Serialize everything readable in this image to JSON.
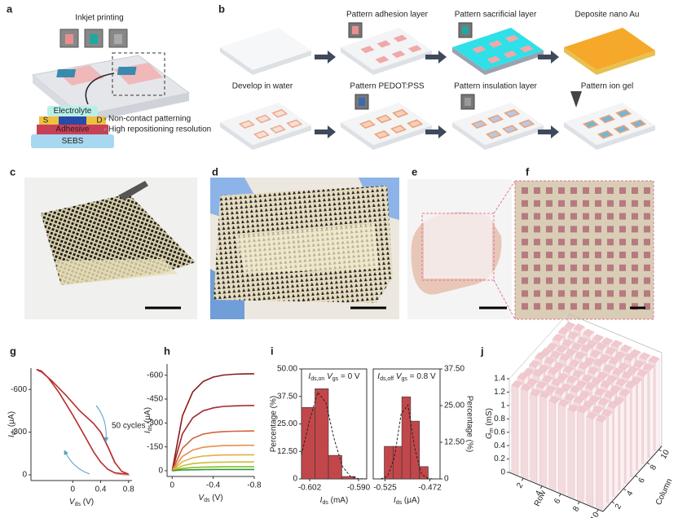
{
  "figure": {
    "panel_a": {
      "label": "a",
      "title": "Inkjet printing",
      "layers": [
        "Electrolyte",
        "S",
        "D",
        "Adhesive",
        "SEBS"
      ],
      "notes": [
        "Non-contact patterning",
        "High repositioning resolution"
      ]
    },
    "panel_b": {
      "label": "b",
      "steps": [
        "Pattern adhesion layer",
        "Pattern sacrificial layer",
        "Deposite nano Au",
        "Develop in water",
        "Pattern PEDOT:PSS",
        "Pattern insulation layer",
        "Pattern ion gel"
      ]
    },
    "photo_labels": [
      "c",
      "d",
      "e",
      "f"
    ]
  },
  "chart_data": [
    {
      "label": "g",
      "type": "line",
      "xlabel": [
        "V",
        "ds",
        " (V)"
      ],
      "ylabel": [
        "I",
        "ds",
        " (μA)"
      ],
      "annotation": "50 cycles",
      "xlim": [
        -0.6,
        0.85
      ],
      "xticks": [
        0,
        0.4,
        0.8
      ],
      "ylim": [
        40,
        -750
      ],
      "yticks": [
        0,
        -300,
        -600
      ],
      "series": [
        {
          "color": "#b8312f",
          "x": [
            -0.52,
            -0.45,
            -0.3,
            -0.1,
            0.1,
            0.3,
            0.4,
            0.5,
            0.6,
            0.7,
            0.8
          ],
          "values": [
            -740,
            -725,
            -660,
            -560,
            -450,
            -360,
            -300,
            -200,
            -90,
            -25,
            -5
          ]
        },
        {
          "color": "#b8312f",
          "x": [
            0.8,
            0.7,
            0.6,
            0.5,
            0.4,
            0.3,
            0.14,
            0.0,
            -0.2,
            -0.35,
            -0.45,
            -0.52
          ],
          "values": [
            -5,
            -8,
            -15,
            -40,
            -90,
            -160,
            -300,
            -420,
            -580,
            -680,
            -730,
            -740
          ]
        }
      ]
    },
    {
      "label": "h",
      "type": "line",
      "xlabel": [
        "V",
        "ds",
        " (V)"
      ],
      "ylabel": [
        "I",
        "ds",
        " (μA)"
      ],
      "xlim": [
        0.05,
        -0.8
      ],
      "xticks": [
        0,
        -0.4,
        -0.8
      ],
      "ylim": [
        36,
        -670
      ],
      "yticks": [
        0,
        -150,
        -300,
        -450,
        -600
      ],
      "x": [
        0,
        -0.1,
        -0.2,
        -0.3,
        -0.4,
        -0.5,
        -0.6,
        -0.7,
        -0.8
      ],
      "series": [
        {
          "color": "#8b1a1a",
          "values": [
            0,
            -345,
            -495,
            -560,
            -588,
            -601,
            -606,
            -608,
            -609
          ]
        },
        {
          "color": "#a3282a",
          "values": [
            0,
            -232,
            -333,
            -376,
            -395,
            -404,
            -407,
            -409,
            -410
          ]
        },
        {
          "color": "#d0643c",
          "values": [
            0,
            -141,
            -203,
            -230,
            -241,
            -246,
            -248,
            -249,
            -250
          ]
        },
        {
          "color": "#e8904a",
          "values": [
            0,
            -90,
            -130,
            -147,
            -154,
            -158,
            -159,
            -160,
            -160
          ]
        },
        {
          "color": "#e0b040",
          "values": [
            0,
            -57,
            -81,
            -92,
            -96,
            -99,
            -99,
            -100,
            -100
          ]
        },
        {
          "color": "#c8c030",
          "values": [
            0,
            -31,
            -45,
            -50,
            -53,
            -54,
            -55,
            -55,
            -55
          ]
        },
        {
          "color": "#88b830",
          "values": [
            0,
            -14,
            -20,
            -23,
            -24,
            -25,
            -25,
            -25,
            -25
          ]
        },
        {
          "color": "#2e9a2e",
          "values": [
            0,
            -5,
            -6,
            -7,
            -8,
            -8,
            -8,
            -8,
            -8
          ]
        }
      ]
    },
    {
      "label": "i",
      "type": "histogram",
      "annotation": [
        "I",
        "ds,on",
        " V",
        "gs",
        " = 0 V"
      ],
      "xlabel": [
        "I",
        "ds",
        " (mA)"
      ],
      "ylabel": "Percentage (%)",
      "y_axis_side": "left",
      "color": "#c2474b",
      "bins": [
        -0.604,
        -0.6007,
        -0.5974,
        -0.5941,
        -0.5908
      ],
      "values": [
        32.5,
        41,
        10.7,
        1.1
      ],
      "fit": {
        "x": [
          -0.604,
          -0.602,
          -0.6,
          -0.598,
          -0.596,
          -0.594,
          -0.592,
          -0.59,
          -0.588
        ],
        "values": [
          11,
          26.8,
          39.4,
          34.6,
          18.3,
          5.8,
          1.1,
          0.1,
          0
        ]
      },
      "xlim": [
        -0.604,
        -0.588
      ],
      "xticks": [
        -0.602,
        {
          "value": -0.59,
          "label": "-0.590"
        }
      ],
      "ylim": [
        0,
        50
      ],
      "yticks": [
        0,
        {
          "value": 12.5,
          "label": "12.50"
        },
        {
          "value": 25,
          "label": "25.00"
        },
        {
          "value": 37.5,
          "label": "37.50"
        },
        {
          "value": 50,
          "label": "50.00"
        }
      ]
    },
    {
      "type": "histogram",
      "annotation": [
        "I",
        "ds,off",
        " V",
        "gs",
        " = 0.8 V"
      ],
      "xlabel": [
        "I",
        "ds",
        " (μA)"
      ],
      "ylabel": "Percentage (%)",
      "y_axis_side": "right",
      "color": "#c2474b",
      "bins": [
        -0.526,
        -0.5156,
        -0.5052,
        -0.4948,
        -0.4844,
        -0.474
      ],
      "values": [
        11.1,
        11.1,
        28,
        19.7,
        4.2
      ],
      "fit": {
        "x": [
          -0.53,
          -0.522,
          -0.514,
          -0.506,
          -0.498,
          -0.49,
          -0.482,
          -0.474,
          -0.466
        ],
        "values": [
          0,
          0.9,
          7.2,
          22.2,
          25.2,
          10.5,
          1.6,
          0.1,
          0
        ]
      },
      "xlim": [
        -0.539,
        -0.46
      ],
      "xticks": [
        -0.525,
        -0.472
      ],
      "ylim": [
        0,
        37.5
      ],
      "yticks": [
        0,
        {
          "value": 12.5,
          "label": "12.50"
        },
        {
          "value": 25,
          "label": "25.00"
        },
        {
          "value": 37.5,
          "label": "37.50"
        }
      ]
    },
    {
      "label": "j",
      "type": "bar3d",
      "xlabel": "Row",
      "ylabel": "Column",
      "zlabel": [
        "G",
        "m",
        " (mS)"
      ],
      "color": "#f3dadd",
      "xticks": [
        2,
        4,
        6,
        8,
        10
      ],
      "yticks": [
        2,
        4,
        6,
        8,
        10
      ],
      "zlim": [
        0,
        1.4
      ],
      "zticks": [
        0,
        0.2,
        0.4,
        0.6,
        0.8,
        1,
        1.2,
        1.4
      ],
      "values": [
        [
          1.3,
          1.32,
          1.29,
          1.31,
          1.33,
          1.3,
          1.28,
          1.31,
          1.32,
          1.3
        ],
        [
          1.31,
          1.29,
          1.33,
          1.3,
          1.32,
          1.31,
          1.3,
          1.29,
          1.31,
          1.33
        ],
        [
          1.29,
          1.31,
          1.3,
          1.32,
          1.3,
          1.33,
          1.31,
          1.3,
          1.29,
          1.31
        ],
        [
          1.32,
          1.3,
          1.31,
          1.29,
          1.31,
          1.3,
          1.32,
          1.33,
          1.3,
          1.29
        ],
        [
          1.3,
          1.33,
          1.29,
          1.31,
          1.3,
          1.32,
          1.29,
          1.31,
          1.32,
          1.3
        ],
        [
          1.31,
          1.3,
          1.32,
          1.3,
          1.29,
          1.31,
          1.33,
          1.3,
          1.31,
          1.32
        ],
        [
          1.29,
          1.32,
          1.3,
          1.33,
          1.31,
          1.29,
          1.3,
          1.32,
          1.3,
          1.31
        ],
        [
          1.33,
          1.31,
          1.29,
          1.3,
          1.32,
          1.3,
          1.31,
          1.29,
          1.33,
          1.3
        ],
        [
          1.3,
          1.29,
          1.31,
          1.32,
          1.3,
          1.31,
          1.32,
          1.3,
          1.29,
          1.31
        ],
        [
          1.31,
          1.3,
          1.32,
          1.29,
          1.31,
          1.33,
          1.3,
          1.31,
          1.3,
          1.32
        ]
      ]
    }
  ]
}
